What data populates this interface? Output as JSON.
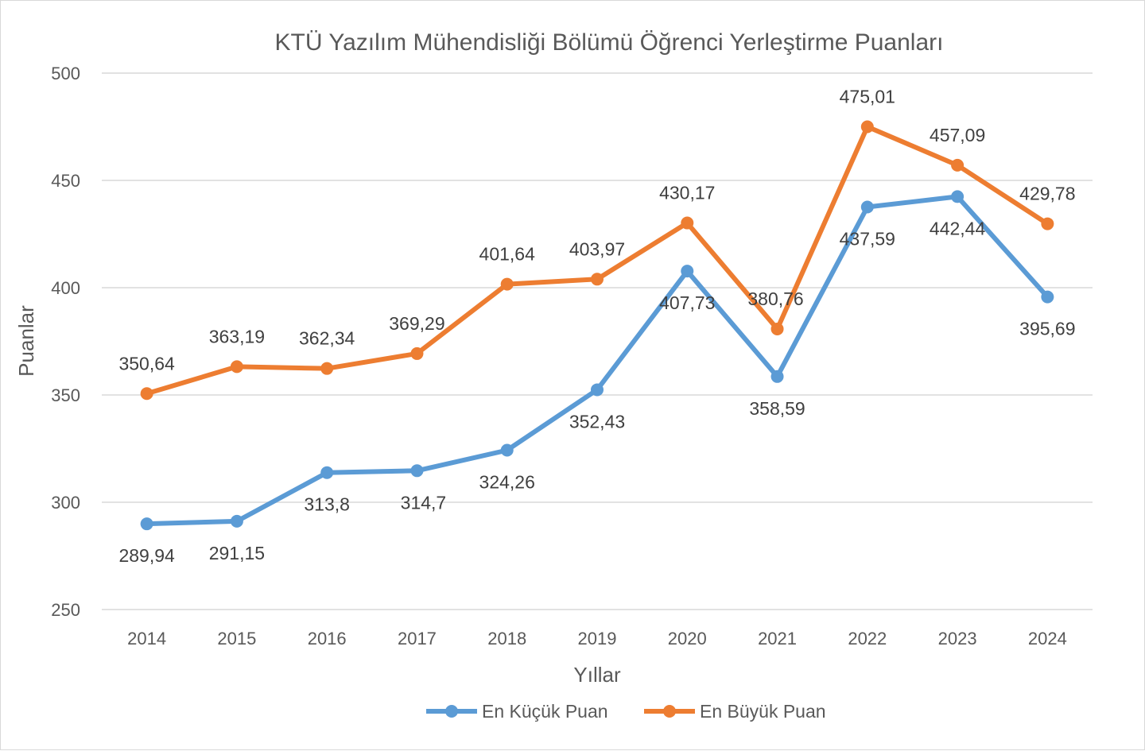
{
  "chart_data": {
    "type": "line",
    "title": "KTÜ Yazılım Mühendisliği Bölümü Öğrenci Yerleştirme Puanları",
    "xlabel": "Yıllar",
    "ylabel": "Puanlar",
    "categories": [
      "2014",
      "2015",
      "2016",
      "2017",
      "2018",
      "2019",
      "2020",
      "2021",
      "2022",
      "2023",
      "2024"
    ],
    "ylim": [
      250,
      500
    ],
    "yticks": [
      250,
      300,
      350,
      400,
      450,
      500
    ],
    "grid": true,
    "legend_position": "bottom",
    "series": [
      {
        "name": "En Küçük Puan",
        "color": "#5b9bd5",
        "values": [
          289.94,
          291.15,
          313.8,
          314.7,
          324.26,
          352.43,
          407.73,
          358.59,
          437.59,
          442.44,
          395.69
        ],
        "labels": [
          "289,94",
          "291,15",
          "313,8",
          "314,7",
          "324,26",
          "352,43",
          "407,73",
          "358,59",
          "437,59",
          "442,44",
          "395,69"
        ]
      },
      {
        "name": "En Büyük Puan",
        "color": "#ed7d31",
        "values": [
          350.64,
          363.19,
          362.34,
          369.29,
          401.64,
          403.97,
          430.17,
          380.76,
          475.01,
          457.09,
          429.78
        ],
        "labels": [
          "350,64",
          "363,19",
          "362,34",
          "369,29",
          "401,64",
          "403,97",
          "430,17",
          "380,76",
          "475,01",
          "457,09",
          "429,78"
        ]
      }
    ]
  }
}
